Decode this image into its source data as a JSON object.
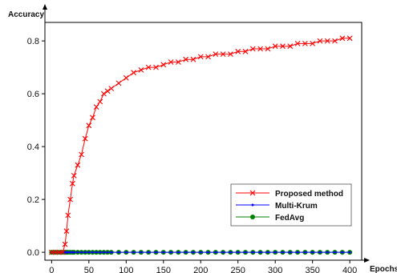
{
  "chart_data": {
    "type": "line",
    "xlabel": "Epochs",
    "ylabel": "Accuracy",
    "xlim": [
      -9,
      416
    ],
    "ylim": [
      -0.03,
      0.87
    ],
    "xticks": [
      0,
      50,
      100,
      150,
      200,
      250,
      300,
      350,
      400
    ],
    "yticks": [
      0.0,
      0.2,
      0.4,
      0.6,
      0.8
    ],
    "x_tick_labels": [
      "0",
      "50",
      "100",
      "150",
      "200",
      "250",
      "300",
      "350",
      "400"
    ],
    "y_tick_labels": [
      "0.0",
      "0.2",
      "0.4",
      "0.6",
      "0.8"
    ],
    "x": [
      0,
      5,
      10,
      15,
      18,
      20,
      22,
      25,
      28,
      30,
      35,
      40,
      45,
      50,
      55,
      60,
      65,
      70,
      75,
      80,
      90,
      100,
      110,
      120,
      130,
      140,
      150,
      160,
      170,
      180,
      190,
      200,
      210,
      220,
      230,
      240,
      250,
      260,
      270,
      280,
      290,
      300,
      310,
      320,
      330,
      340,
      350,
      360,
      370,
      380,
      390,
      400
    ],
    "series": [
      {
        "name": "Proposed method",
        "color": "#ff0000",
        "marker": "x",
        "values": [
          0.0,
          0.0,
          0.0,
          0.0,
          0.03,
          0.08,
          0.14,
          0.2,
          0.26,
          0.29,
          0.33,
          0.37,
          0.43,
          0.48,
          0.51,
          0.55,
          0.57,
          0.6,
          0.61,
          0.62,
          0.64,
          0.66,
          0.68,
          0.69,
          0.7,
          0.7,
          0.71,
          0.72,
          0.72,
          0.73,
          0.73,
          0.74,
          0.74,
          0.75,
          0.75,
          0.75,
          0.76,
          0.76,
          0.77,
          0.77,
          0.77,
          0.78,
          0.78,
          0.78,
          0.79,
          0.79,
          0.79,
          0.8,
          0.8,
          0.8,
          0.81,
          0.81
        ]
      },
      {
        "name": "Multi-Krum",
        "color": "#0000ff",
        "marker": "dot",
        "values": [
          0.0,
          0.0,
          0.0,
          0.0,
          0.0,
          0.0,
          0.0,
          0.0,
          0.0,
          0.0,
          0.0,
          0.0,
          0.0,
          0.0,
          0.0,
          0.0,
          0.0,
          0.0,
          0.0,
          0.0,
          0.0,
          0.0,
          0.0,
          0.0,
          0.0,
          0.0,
          0.0,
          0.0,
          0.0,
          0.0,
          0.0,
          0.0,
          0.0,
          0.0,
          0.0,
          0.0,
          0.0,
          0.0,
          0.0,
          0.0,
          0.0,
          0.0,
          0.0,
          0.0,
          0.0,
          0.0,
          0.0,
          0.0,
          0.0,
          0.0,
          0.0,
          0.0
        ]
      },
      {
        "name": "FedAvg",
        "color": "#008000",
        "marker": "circle",
        "values": [
          0.0,
          0.0,
          0.0,
          0.0,
          0.0,
          0.0,
          0.0,
          0.0,
          0.0,
          0.0,
          0.0,
          0.0,
          0.0,
          0.0,
          0.0,
          0.0,
          0.0,
          0.0,
          0.0,
          0.0,
          0.0,
          0.0,
          0.0,
          0.0,
          0.0,
          0.0,
          0.0,
          0.0,
          0.0,
          0.0,
          0.0,
          0.0,
          0.0,
          0.0,
          0.0,
          0.0,
          0.0,
          0.0,
          0.0,
          0.0,
          0.0,
          0.0,
          0.0,
          0.0,
          0.0,
          0.0,
          0.0,
          0.0,
          0.0,
          0.0,
          0.0,
          0.0
        ]
      }
    ],
    "legend_placement": "lower-right",
    "grid": false
  }
}
